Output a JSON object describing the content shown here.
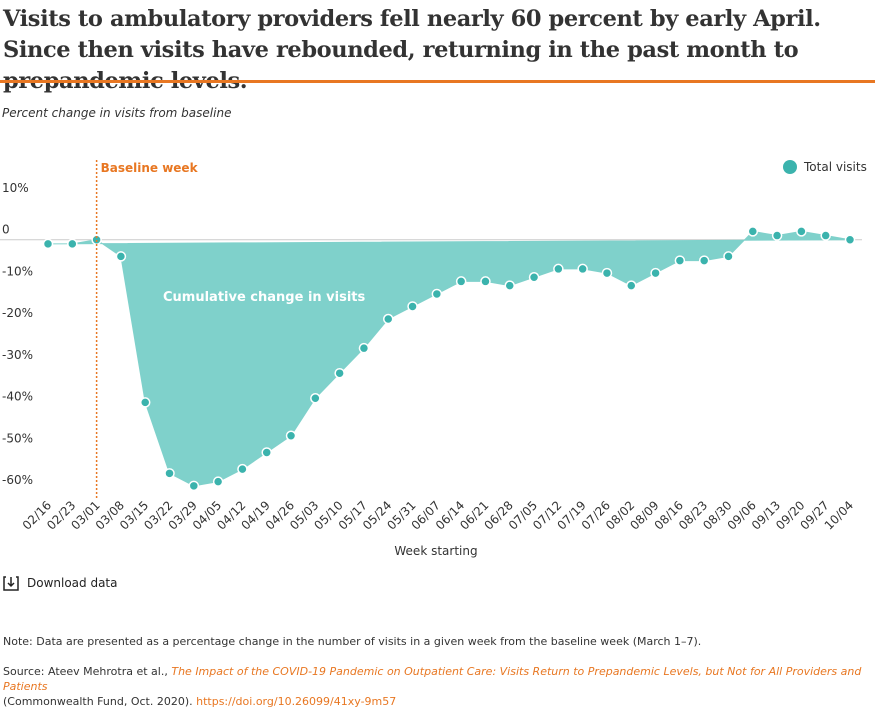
{
  "chart_data": {
    "type": "area",
    "title": "Visits to ambulatory providers fell nearly 60 percent by early April. Since then visits have rebounded, returning in the past month to prepandemic levels.",
    "y_label": "Percent change in visits from baseline",
    "x_label": "Week starting",
    "categories": [
      "02/16",
      "02/23",
      "03/01",
      "03/08",
      "03/15",
      "03/22",
      "03/29",
      "04/05",
      "04/12",
      "04/19",
      "04/26",
      "05/03",
      "05/10",
      "05/17",
      "05/24",
      "05/31",
      "06/07",
      "06/14",
      "06/21",
      "06/28",
      "07/05",
      "07/12",
      "07/19",
      "07/26",
      "08/02",
      "08/09",
      "08/16",
      "08/23",
      "08/30",
      "09/06",
      "09/13",
      "09/20",
      "09/27",
      "10/04"
    ],
    "series": [
      {
        "name": "Total visits",
        "color": "#3bb3ad",
        "fill": "#7fd1cb",
        "values": [
          -1,
          -1,
          0,
          -4,
          -39,
          -56,
          -59,
          -58,
          -55,
          -51,
          -47,
          -38,
          -32,
          -26,
          -19,
          -16,
          -13,
          -10,
          -10,
          -11,
          -9,
          -7,
          -7,
          -8,
          -11,
          -8,
          -5,
          -5,
          -4,
          2,
          1,
          2,
          1,
          0
        ]
      }
    ],
    "ylim": [
      -60,
      10
    ],
    "yticks": [
      {
        "value": 10,
        "label": "10%"
      },
      0,
      {
        "value": -10,
        "label": "-10%"
      },
      {
        "value": -20,
        "label": "-20%"
      },
      {
        "value": -30,
        "label": "-30%"
      },
      {
        "value": -40,
        "label": "-40%"
      },
      {
        "value": -50,
        "label": "-50%"
      },
      {
        "value": -60,
        "label": "-60%"
      }
    ],
    "grid": false,
    "legend": "top-right",
    "annotations": [
      {
        "text": "Baseline week",
        "x": "03/01",
        "color": "#e87722"
      },
      {
        "text": "Cumulative change in visits"
      }
    ]
  },
  "download": "Download data",
  "note": "Note: Data are presented as a percentage change in the number of visits in a given week from the baseline week (March 1–7).",
  "source": {
    "prefix": "Source: Ateev Mehrotra et al., ",
    "title": "The Impact of the COVID-19 Pandemic on Outpatient Care: Visits Return to Prepandemic Levels, but Not for All Providers and Patients",
    "publisher": "(Commonwealth Fund, Oct. 2020). ",
    "link": "https://doi.org/10.26099/41xy-9m57"
  }
}
